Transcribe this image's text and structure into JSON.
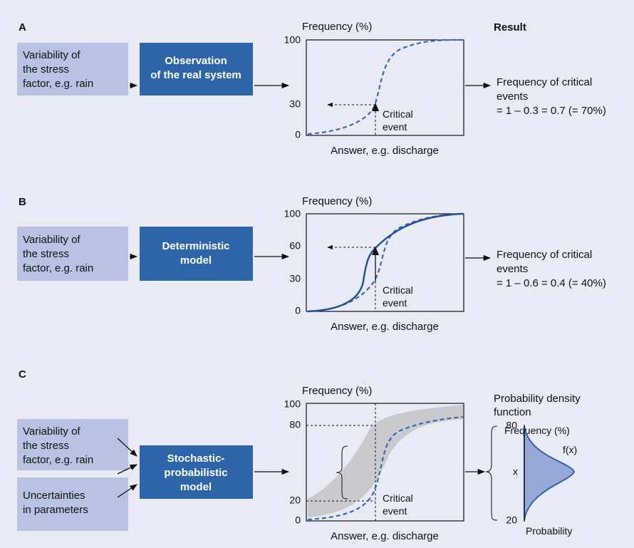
{
  "result_heading": "Result",
  "panels": [
    {
      "label": "A",
      "inputs": [
        [
          "Variability of",
          "the stress",
          "factor, e.g. rain"
        ]
      ],
      "model": [
        "Observation",
        "of the real system"
      ],
      "chart": {
        "y_label": "Frequency (%)",
        "yticks": [
          "100",
          "30",
          "0"
        ],
        "annotation": [
          "Critical",
          "event"
        ],
        "x_label": "Answer, e.g. discharge"
      },
      "result": [
        "Frequency of critical",
        "events",
        "= 1 – 0.3 = 0.7 (= 70%)"
      ]
    },
    {
      "label": "B",
      "inputs": [
        [
          "Variability of",
          "the stress",
          "factor, e.g. rain"
        ]
      ],
      "model": [
        "Deterministic",
        "model"
      ],
      "chart": {
        "y_label": "Frequency (%)",
        "yticks": [
          "100",
          "60",
          "30",
          "0"
        ],
        "annotation": [
          "Critical",
          "event"
        ],
        "x_label": "Answer, e.g. discharge"
      },
      "result": [
        "Frequency of critical",
        "events",
        "= 1 – 0.6 = 0.4  (= 40%)"
      ]
    },
    {
      "label": "C",
      "inputs": [
        [
          "Variability of",
          "the stress",
          "factor, e.g. rain"
        ],
        [
          "Uncertainties",
          "in parameters"
        ]
      ],
      "model": [
        "Stochastic-",
        "probabilistic",
        "model"
      ],
      "chart": {
        "y_label": "Frequency (%)",
        "yticks": [
          "100",
          "80",
          "20",
          "0"
        ],
        "annotation": [
          "Critical",
          "event"
        ],
        "x_label": "Answer, e.g. discharge"
      },
      "pdf": {
        "title": [
          "Probability density",
          "function"
        ],
        "y_label": "Frequency (%)",
        "yticks": [
          "80",
          "20"
        ],
        "variable": "x",
        "function": "f(x)",
        "x_label": "Probability"
      }
    }
  ]
}
